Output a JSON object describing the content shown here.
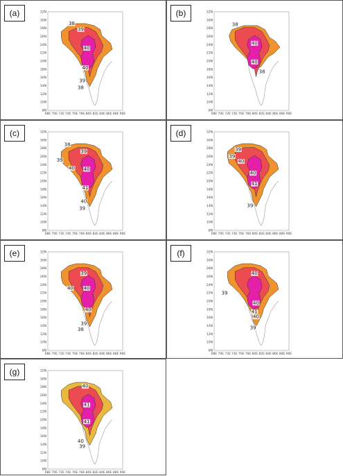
{
  "panels": [
    {
      "label": "(a)",
      "contours": [
        "38",
        "39",
        "40",
        "40",
        "39",
        "38"
      ]
    },
    {
      "label": "(b)",
      "contours": [
        "38",
        "40",
        "40",
        "38"
      ]
    },
    {
      "label": "(c)",
      "contours": [
        "38",
        "39",
        "39",
        "40",
        "40",
        "41",
        "40",
        "39",
        "38"
      ]
    },
    {
      "label": "(d)",
      "contours": [
        "39",
        "39",
        "40",
        "40",
        "41",
        "39"
      ]
    },
    {
      "label": "(e)",
      "contours": [
        "39",
        "40",
        "40",
        "40",
        "39",
        "38"
      ]
    },
    {
      "label": "(f)",
      "contours": [
        "40",
        "39",
        "40",
        "41",
        "40",
        "39"
      ]
    },
    {
      "label": "(g)",
      "contours": [
        "40",
        "41",
        "41",
        "40",
        "39"
      ]
    }
  ],
  "axes": {
    "lat_ticks": [
      "8N",
      "10N",
      "12N",
      "14N",
      "16N",
      "18N",
      "20N",
      "22N",
      "24N",
      "26N",
      "28N",
      "30N",
      "32N"
    ],
    "lon_ticks": [
      "68E",
      "70E",
      "72E",
      "74E",
      "76E",
      "78E",
      "80E",
      "82E",
      "84E",
      "86E",
      "88E",
      "90E"
    ]
  },
  "colors": {
    "orange": "#f0922e",
    "red": "#ec4b52",
    "magenta": "#e51fa8",
    "gold": "#eab73f",
    "coast": "#9a9a9a"
  }
}
